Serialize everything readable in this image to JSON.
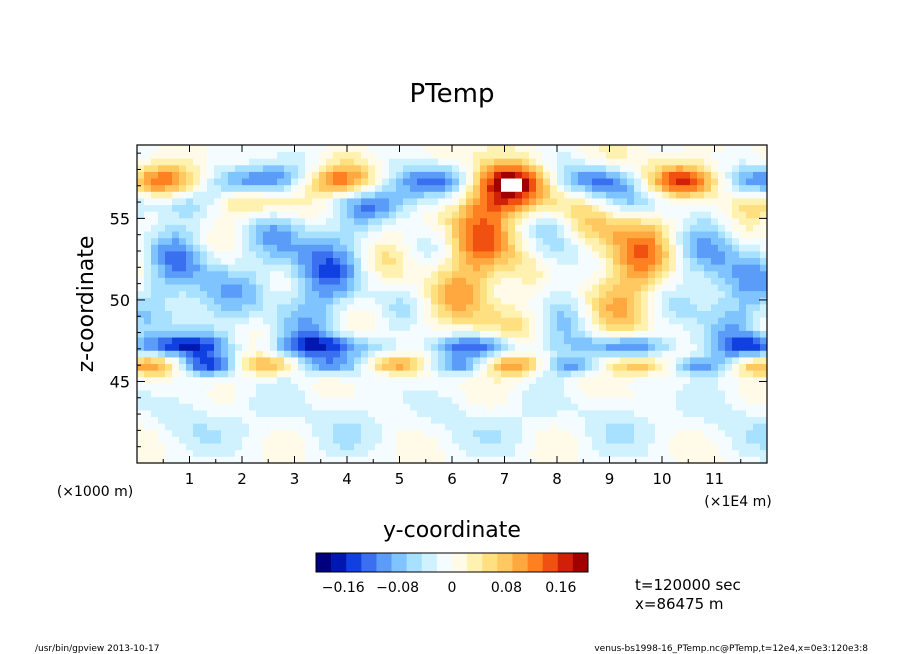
{
  "chart_data": {
    "type": "heatmap",
    "title": "PTemp",
    "xlabel": "y-coordinate",
    "ylabel": "z-coordinate",
    "x_unit_left": "(×1000 m)",
    "x_unit_right": "(×1E4 m)",
    "x_ticks": [
      "1",
      "2",
      "3",
      "4",
      "5",
      "6",
      "7",
      "8",
      "9",
      "10",
      "11"
    ],
    "x_tick_values": [
      1,
      2,
      3,
      4,
      5,
      6,
      7,
      8,
      9,
      10,
      11
    ],
    "xlim": [
      0,
      12
    ],
    "y_ticks": [
      "45",
      "50",
      "55"
    ],
    "y_tick_values": [
      45,
      50,
      55
    ],
    "ylim": [
      40,
      59.5
    ],
    "colorbar": {
      "range": [
        -0.2,
        0.2
      ],
      "ticks": [
        "−0.16",
        "−0.08",
        "0",
        "0.08",
        "0.16"
      ],
      "tick_values": [
        -0.16,
        -0.08,
        0,
        0.08,
        0.16
      ],
      "colors": [
        "#00007f",
        "#0018b0",
        "#1040e0",
        "#3a70f0",
        "#5a9cf8",
        "#80c4ff",
        "#a8e0ff",
        "#d0f2ff",
        "#f4fcff",
        "#fffbe8",
        "#fff2b0",
        "#ffe080",
        "#ffc860",
        "#ffa840",
        "#ff8020",
        "#f05010",
        "#d02008",
        "#a00000"
      ]
    },
    "grid": false,
    "legend": "none"
  },
  "annotations": {
    "time": "t=120000 sec",
    "position": "x=86475 m"
  },
  "footer": {
    "left": "/usr/bin/gpview   2013-10-17",
    "right": "venus-bs1998-16_PTemp.nc@PTemp,t=12e4,x=0e3:120e3:8"
  }
}
